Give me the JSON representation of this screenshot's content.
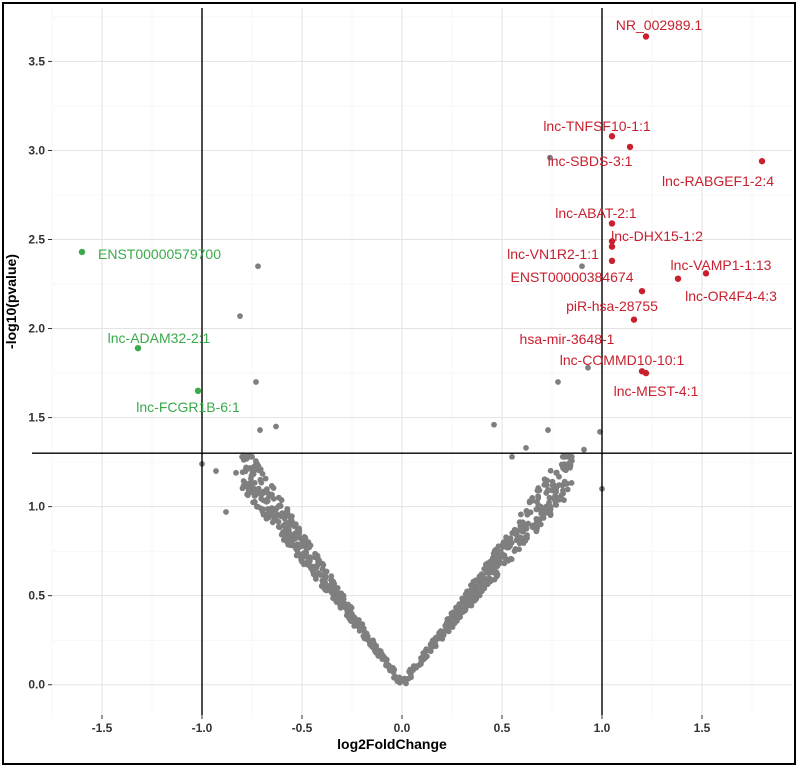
{
  "chart_data": {
    "type": "scatter",
    "title": "",
    "xlabel": "log2FoldChange",
    "ylabel": "-log10(pvalue)",
    "xlim": [
      -1.75,
      1.95
    ],
    "ylim": [
      -0.17,
      3.8
    ],
    "xticks": [
      -1.5,
      -1.0,
      -0.5,
      0.0,
      0.5,
      1.0,
      1.5
    ],
    "xtick_labels": [
      "-1.5",
      "-1.0",
      "-0.5",
      "0.0",
      "0.5",
      "1.0",
      "1.5"
    ],
    "yticks": [
      0.0,
      0.5,
      1.0,
      1.5,
      2.0,
      2.5,
      3.0,
      3.5
    ],
    "ytick_labels": [
      "0.0",
      "0.5",
      "1.0",
      "1.5",
      "2.0",
      "2.5",
      "3.0",
      "3.5"
    ],
    "grid": true,
    "thresholds": {
      "fold_change": [
        -1.0,
        1.0
      ],
      "pvalue": 1.3
    },
    "colors": {
      "up": "#c8202f",
      "down": "#3aaa4a",
      "ns": "#7f7f7f"
    },
    "upregulated": [
      {
        "label": "NR_002989.1",
        "x": 1.22,
        "y": 3.64
      },
      {
        "label": "lnc-TNFSF10-1:1",
        "x": 1.05,
        "y": 3.08
      },
      {
        "label": "lnc-SBDS-3:1",
        "x": 1.14,
        "y": 3.02
      },
      {
        "label": "lnc-RABGEF1-2:4",
        "x": 1.8,
        "y": 2.94
      },
      {
        "label": "lnc-ABAT-2:1",
        "x": 1.05,
        "y": 2.59
      },
      {
        "label": "lnc-DHX15-1:2",
        "x": 1.05,
        "y": 2.49
      },
      {
        "label": "lnc-VN1R2-1:1",
        "x": 1.05,
        "y": 2.46
      },
      {
        "label": "ENST00000384674",
        "x": 1.05,
        "y": 2.38
      },
      {
        "label": "lnc-VAMP1-1:13",
        "x": 1.52,
        "y": 2.31
      },
      {
        "label": "lnc-OR4F4-4:3",
        "x": 1.38,
        "y": 2.28
      },
      {
        "label": "piR-hsa-28755",
        "x": 1.2,
        "y": 2.21
      },
      {
        "label": "hsa-mir-3648-1",
        "x": 1.16,
        "y": 2.05
      },
      {
        "label": "lnc-COMMD10-10:1",
        "x": 1.2,
        "y": 1.76
      },
      {
        "label": "lnc-MEST-4:1",
        "x": 1.22,
        "y": 1.75
      }
    ],
    "downregulated": [
      {
        "label": "ENST00000579700",
        "x": -1.6,
        "y": 2.43
      },
      {
        "label": "lnc-ADAM32-2:1",
        "x": -1.32,
        "y": 1.89
      },
      {
        "label": "lnc-FCGR1B-6:1",
        "x": -1.02,
        "y": 1.65
      }
    ],
    "nonsignificant_extra": [
      {
        "x": -0.72,
        "y": 2.35
      },
      {
        "x": -0.81,
        "y": 2.07
      },
      {
        "x": -0.73,
        "y": 1.7
      },
      {
        "x": -0.71,
        "y": 1.43
      },
      {
        "x": -0.63,
        "y": 1.45
      },
      {
        "x": 0.74,
        "y": 2.96
      },
      {
        "x": 0.9,
        "y": 2.35
      },
      {
        "x": 0.46,
        "y": 1.46
      },
      {
        "x": 0.78,
        "y": 1.7
      },
      {
        "x": 0.93,
        "y": 1.78
      },
      {
        "x": 0.73,
        "y": 1.43
      },
      {
        "x": 0.91,
        "y": 1.32
      },
      {
        "x": 0.99,
        "y": 1.42
      },
      {
        "x": 1.0,
        "y": 1.1
      },
      {
        "x": -1.0,
        "y": 1.24
      },
      {
        "x": -0.93,
        "y": 1.2
      },
      {
        "x": -0.83,
        "y": 1.19
      },
      {
        "x": -0.88,
        "y": 0.97
      },
      {
        "x": 0.62,
        "y": 1.33
      },
      {
        "x": 0.55,
        "y": 1.28
      }
    ],
    "nonsignificant_cloud": {
      "count": 820,
      "x_range": [
        -0.8,
        0.85
      ],
      "y_max": 1.3
    }
  }
}
